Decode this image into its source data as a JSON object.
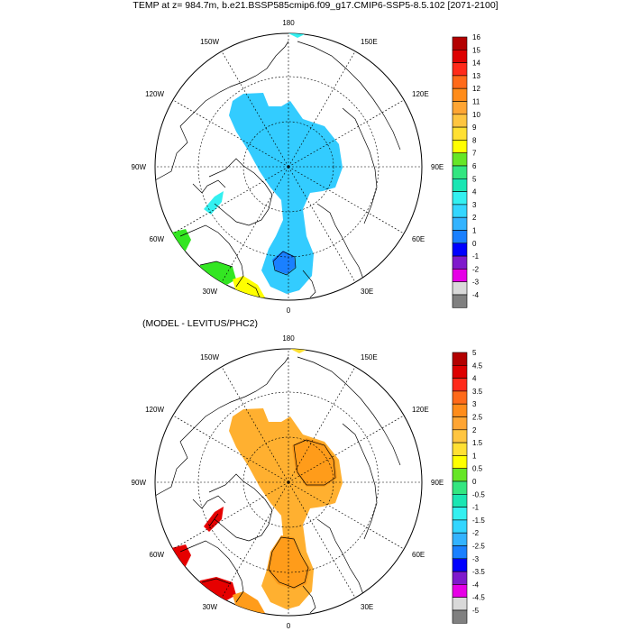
{
  "title": "TEMP at z= 984.7m, b.e21.BSSP585cmip6.f09_g17.CMIP6-SSP5-8.5.102 [2071-2100]",
  "subtitle": "(MODEL - LEVITUS/PHC2)",
  "lon_labels": {
    "top": "180",
    "tr": "150E",
    "tl": "150W",
    "r120": "120E",
    "l120": "120W",
    "r90": "90E",
    "l90": "90W",
    "r60": "60E",
    "l60": "60W",
    "br": "30E",
    "bl": "30W",
    "bottom": "0"
  },
  "colorbar_top": {
    "labels": [
      "16",
      "15",
      "14",
      "13",
      "12",
      "11",
      "10",
      "9",
      "8",
      "7",
      "6",
      "5",
      "4",
      "3",
      "2",
      "1",
      "0",
      "-1",
      "-2",
      "-3",
      "-4"
    ],
    "colors": [
      "#b30000",
      "#dd0000",
      "#ff2a1a",
      "#ff6a1a",
      "#ff8c1a",
      "#ffa533",
      "#ffc540",
      "#ffe033",
      "#ffff00",
      "#66e626",
      "#33e680",
      "#1ae6b3",
      "#33f0f0",
      "#33d6ff",
      "#33b3ff",
      "#1a80ff",
      "#0000ff",
      "#7f1acc",
      "#e600e6",
      "#d9d9d9",
      "#808080"
    ]
  },
  "colorbar_bottom": {
    "labels": [
      "5",
      "4.5",
      "4",
      "3.5",
      "3",
      "2.5",
      "2",
      "1.5",
      "1",
      "0.5",
      "0",
      "-0.5",
      "-1",
      "-1.5",
      "-2",
      "-2.5",
      "-3",
      "-3.5",
      "-4",
      "-4.5",
      "-5"
    ],
    "colors": [
      "#b30000",
      "#dd0000",
      "#ff2a1a",
      "#ff6a1a",
      "#ff8c1a",
      "#ffa533",
      "#ffc540",
      "#ffe033",
      "#ffff00",
      "#66e626",
      "#33e680",
      "#1ae6b3",
      "#33f0f0",
      "#33d6ff",
      "#33b3ff",
      "#1a80ff",
      "#0000ff",
      "#7f1acc",
      "#e600e6",
      "#d9d9d9",
      "#808080"
    ]
  },
  "fields": {
    "top_main": "#33ccff",
    "top_minimum": "#1a80ff",
    "top_baffin": "#33f0f0",
    "top_green": "#33e622",
    "top_yellow": "#ffff00",
    "bottom_main": "#ffb030",
    "bottom_warm": "#ff9c1a",
    "bottom_red": "#e60000"
  }
}
